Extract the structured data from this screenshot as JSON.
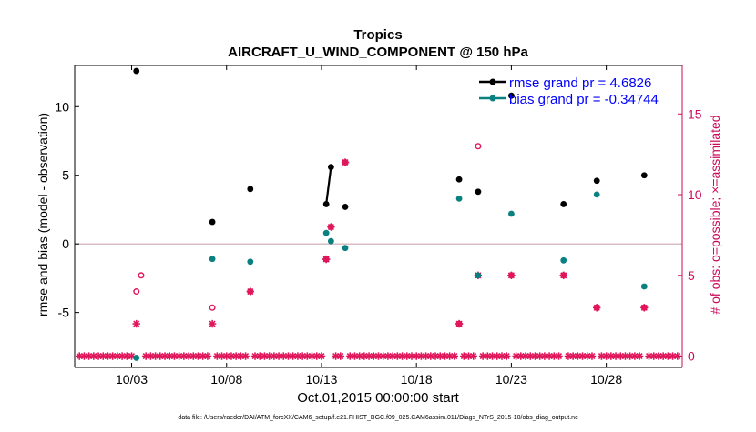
{
  "chart_data": {
    "type": "scatter",
    "title": "Tropics",
    "subtitle": "AIRCRAFT_U_WIND_COMPONENT @ 150 hPa",
    "xlabel": "Oct.01,2015 00:00:00 start",
    "ylabel": "rmse and bias (model - observation)",
    "y2label": "# of obs: o=possible; ×=assimilated",
    "footer": "data file: /Users/raeder/DAI/ATM_forcXX/CAM6_setup/f.e21.FHIST_BGC.f09_025.CAM6assim.011/Diags_NTrS_2015-10/obs_diag_output.nc",
    "xlim": [
      0.0,
      32.0
    ],
    "ylim": [
      -9.0,
      13.0
    ],
    "y2lim": [
      -0.7,
      18
    ],
    "x_ticks": [
      {
        "value": 3,
        "label": "10/03"
      },
      {
        "value": 8,
        "label": "10/08"
      },
      {
        "value": 13,
        "label": "10/13"
      },
      {
        "value": 18,
        "label": "10/18"
      },
      {
        "value": 23,
        "label": "10/23"
      },
      {
        "value": 28,
        "label": "10/28"
      }
    ],
    "y_ticks": [
      {
        "value": -5,
        "label": "-5"
      },
      {
        "value": 0,
        "label": "0"
      },
      {
        "value": 5,
        "label": "5"
      },
      {
        "value": 10,
        "label": "10"
      }
    ],
    "y2_ticks": [
      {
        "value": 0,
        "label": "0"
      },
      {
        "value": 5,
        "label": "5"
      },
      {
        "value": 10,
        "label": "10"
      },
      {
        "value": 15,
        "label": "15"
      }
    ],
    "legend": {
      "position": "top-right",
      "entries": [
        {
          "name": "rmse grand pr = 4.6826",
          "color": "#000000"
        },
        {
          "name": "bias grand pr = -0.34744",
          "color": "#0a8080"
        }
      ]
    },
    "colors": {
      "rmse": "#000000",
      "bias": "#0a8080",
      "obs": "#e0165a",
      "zero_line": "#c8a8b0",
      "legend_text": "#0000ff",
      "axis_right": "#cc0a5a"
    },
    "series": [
      {
        "name": "rmse",
        "points": [
          {
            "x": 3.25,
            "y": 12.6
          },
          {
            "x": 7.25,
            "y": 1.6
          },
          {
            "x": 9.25,
            "y": 4.0
          },
          {
            "x": 13.25,
            "y": 2.9
          },
          {
            "x": 13.5,
            "y": 5.6
          },
          {
            "x": 14.25,
            "y": 2.7
          },
          {
            "x": 20.25,
            "y": 4.7
          },
          {
            "x": 21.25,
            "y": 3.8
          },
          {
            "x": 23.0,
            "y": 10.8
          },
          {
            "x": 25.75,
            "y": 2.9
          },
          {
            "x": 27.5,
            "y": 4.6
          },
          {
            "x": 30.0,
            "y": 5.0
          }
        ],
        "line_segments": [
          [
            3,
            4
          ]
        ]
      },
      {
        "name": "bias",
        "points": [
          {
            "x": 3.25,
            "y": -8.3
          },
          {
            "x": 7.25,
            "y": -1.1
          },
          {
            "x": 9.25,
            "y": -1.3
          },
          {
            "x": 13.25,
            "y": 0.8
          },
          {
            "x": 13.5,
            "y": 0.2
          },
          {
            "x": 14.25,
            "y": -0.3
          },
          {
            "x": 20.25,
            "y": 3.3
          },
          {
            "x": 21.25,
            "y": -2.3
          },
          {
            "x": 23.0,
            "y": 2.2
          },
          {
            "x": 25.75,
            "y": -1.2
          },
          {
            "x": 27.5,
            "y": 3.6
          },
          {
            "x": 30.0,
            "y": -3.1
          }
        ]
      },
      {
        "name": "obs possible",
        "points": [
          {
            "x": 3.25,
            "y": 4
          },
          {
            "x": 3.5,
            "y": 5
          },
          {
            "x": 7.25,
            "y": 3
          },
          {
            "x": 9.25,
            "y": 4
          },
          {
            "x": 13.25,
            "y": 6
          },
          {
            "x": 13.5,
            "y": 8
          },
          {
            "x": 14.25,
            "y": 12
          },
          {
            "x": 20.25,
            "y": 2
          },
          {
            "x": 21.25,
            "y": 13
          },
          {
            "x": 23.0,
            "y": 5
          },
          {
            "x": 25.75,
            "y": 5
          },
          {
            "x": 27.5,
            "y": 3
          },
          {
            "x": 30.0,
            "y": 3
          }
        ]
      },
      {
        "name": "obs assimilated",
        "points": [
          {
            "x": 3.25,
            "y": 2
          },
          {
            "x": 7.25,
            "y": 2
          },
          {
            "x": 9.25,
            "y": 4
          },
          {
            "x": 13.25,
            "y": 6
          },
          {
            "x": 13.5,
            "y": 8
          },
          {
            "x": 14.25,
            "y": 12
          },
          {
            "x": 20.25,
            "y": 2
          },
          {
            "x": 21.25,
            "y": 5
          },
          {
            "x": 23.0,
            "y": 5
          },
          {
            "x": 25.75,
            "y": 5
          },
          {
            "x": 27.5,
            "y": 3
          },
          {
            "x": 30.0,
            "y": 3
          }
        ],
        "zero_row": {
          "start": 0.25,
          "end": 31.75,
          "step": 0.25,
          "y": 0,
          "skip": [
            3.25,
            3.5,
            7.25,
            9.25,
            13.25,
            13.5,
            14.25,
            20.25,
            21.25,
            23.0,
            25.75,
            27.5,
            30.0
          ]
        }
      }
    ]
  }
}
